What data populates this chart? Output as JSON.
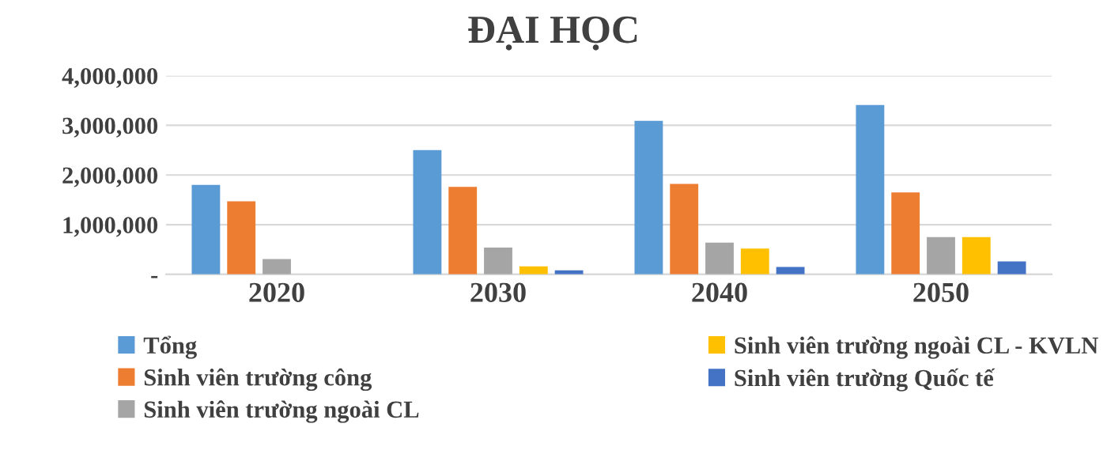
{
  "chart_data": {
    "type": "bar",
    "title": "ĐẠI HỌC",
    "categories": [
      "2020",
      "2030",
      "2040",
      "2050"
    ],
    "series": [
      {
        "name": "Tổng",
        "color": "#5b9bd5",
        "values": [
          1800000,
          2500000,
          3090000,
          3410000
        ]
      },
      {
        "name": "Sinh viên trường công",
        "color": "#ed7d31",
        "values": [
          1470000,
          1760000,
          1820000,
          1650000
        ]
      },
      {
        "name": "Sinh viên trường ngoài CL",
        "color": "#a5a5a5",
        "values": [
          310000,
          540000,
          640000,
          750000
        ]
      },
      {
        "name": "Sinh viên trường ngoài CL - KVLN",
        "color": "#ffc000",
        "values": [
          0,
          160000,
          520000,
          750000
        ]
      },
      {
        "name": "Sinh viên trường Quốc tế",
        "color": "#4472c4",
        "values": [
          0,
          80000,
          150000,
          260000
        ]
      }
    ],
    "ylim": [
      0,
      4000000
    ],
    "yticks": [
      {
        "value": 0,
        "label": "-"
      },
      {
        "value": 1000000,
        "label": "1,000,000"
      },
      {
        "value": 2000000,
        "label": "2,000,000"
      },
      {
        "value": 3000000,
        "label": "3,000,000"
      },
      {
        "value": 4000000,
        "label": "4,000,000"
      }
    ],
    "grid": "y",
    "legend": "bottom"
  }
}
